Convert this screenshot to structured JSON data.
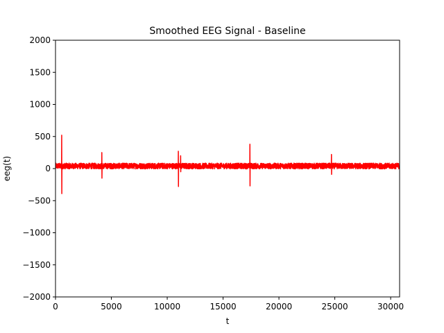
{
  "chart_data": {
    "type": "line",
    "title": "Smoothed EEG Signal - Baseline",
    "xlabel": "t",
    "ylabel": "eeg(t)",
    "xlim": [
      0,
      30800
    ],
    "ylim": [
      -2000,
      2000
    ],
    "x_ticks": [
      0,
      5000,
      10000,
      15000,
      20000,
      25000,
      30000
    ],
    "y_ticks": [
      -2000,
      -1500,
      -1000,
      -500,
      0,
      500,
      1000,
      1500,
      2000
    ],
    "x_tick_labels": [
      "0",
      "5000",
      "10000",
      "15000",
      "20000",
      "25000",
      "30000"
    ],
    "y_tick_labels": [
      "−2000",
      "−1500",
      "−1000",
      "−500",
      "0",
      "500",
      "1000",
      "1500",
      "2000"
    ],
    "grid": false,
    "legend": "none",
    "series": [
      {
        "color": "#ff0000",
        "baseline": 40,
        "noise_amplitude": 45,
        "spikes": [
          {
            "t": 550,
            "values": [
              520,
              -390
            ]
          },
          {
            "t": 4150,
            "values": [
              250,
              -150
            ]
          },
          {
            "t": 11000,
            "values": [
              270,
              -280
            ]
          },
          {
            "t": 11200,
            "values": [
              200,
              -50
            ]
          },
          {
            "t": 17400,
            "values": [
              380,
              -270
            ]
          },
          {
            "t": 24700,
            "values": [
              220,
              -90
            ]
          }
        ]
      }
    ]
  }
}
